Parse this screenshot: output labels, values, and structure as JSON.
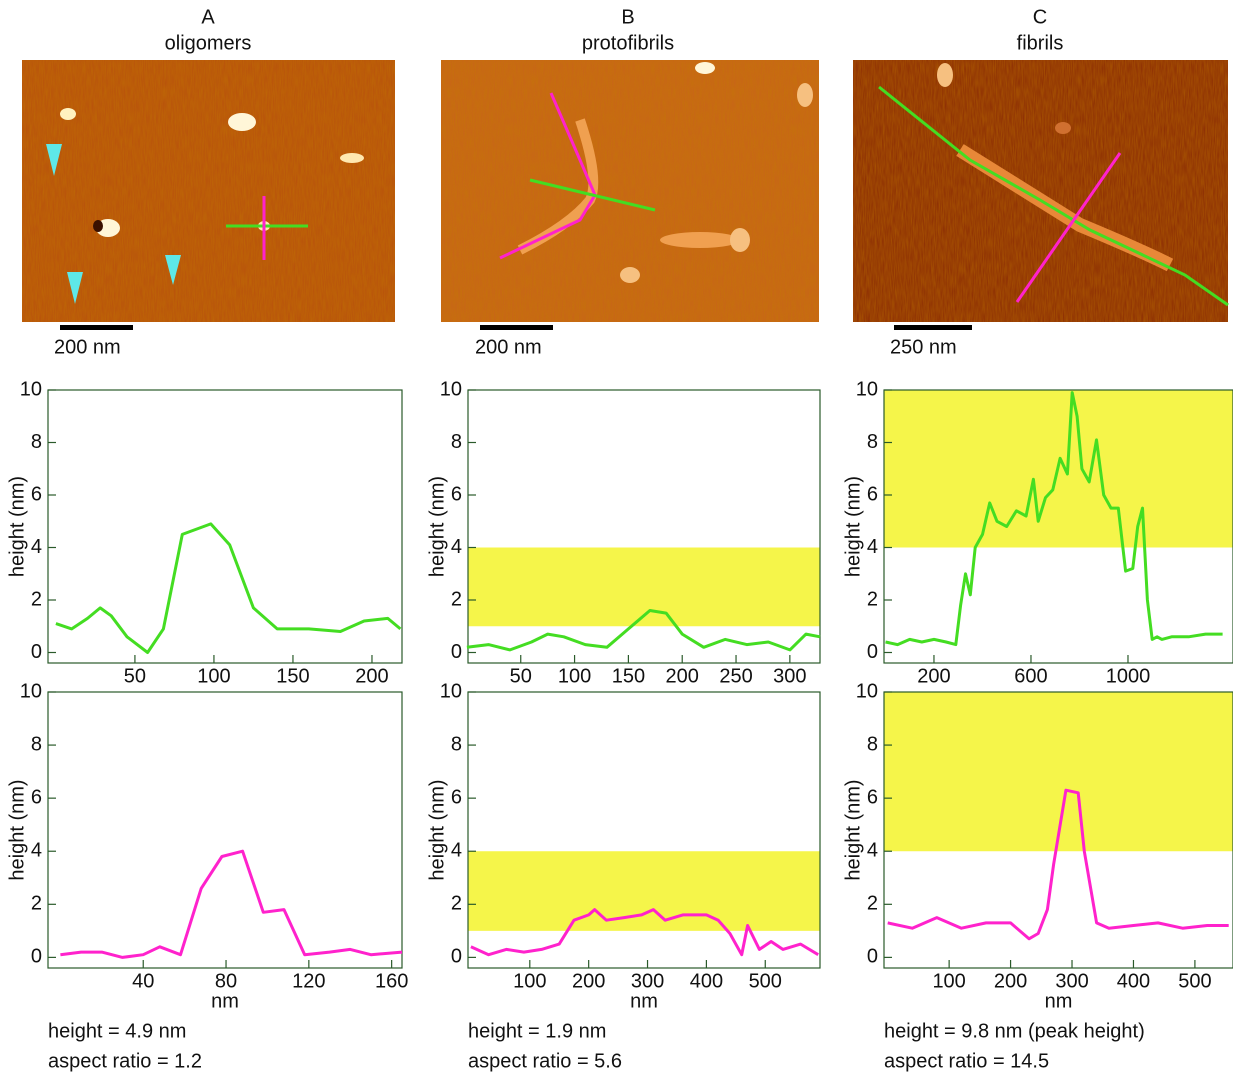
{
  "panels": [
    {
      "label": "A",
      "title": "oligomers",
      "scale_bar": "200 nm",
      "summary": [
        "height = 4.9 nm",
        "aspect ratio = 1.2"
      ]
    },
    {
      "label": "B",
      "title": "protofibrils",
      "scale_bar": "200 nm",
      "summary": [
        "height = 1.9 nm",
        "aspect ratio = 5.6"
      ]
    },
    {
      "label": "C",
      "title": "fibrils",
      "scale_bar": "250 nm",
      "summary": [
        "height = 9.8 nm (peak height)",
        "aspect ratio = 14.5"
      ]
    }
  ],
  "chart_data": [
    {
      "type": "line",
      "ylabel": "height (nm)",
      "color": "#44dd22",
      "x": [
        0,
        10,
        20,
        28,
        35,
        45,
        58,
        68,
        80,
        98,
        110,
        125,
        140,
        160,
        180,
        195,
        210,
        218
      ],
      "values": [
        1.1,
        0.9,
        1.3,
        1.7,
        1.4,
        0.6,
        0,
        0.9,
        4.5,
        4.9,
        4.1,
        1.7,
        0.9,
        0.9,
        0.8,
        1.2,
        1.3,
        0.9
      ],
      "xlim": [
        -5,
        219
      ],
      "xticks": [
        50,
        100,
        150,
        200
      ],
      "ylim": [
        -0.4,
        10
      ],
      "yticks": [
        0,
        2,
        4,
        6,
        8,
        10
      ]
    },
    {
      "type": "line",
      "ylabel": "height (nm)",
      "xlabel": "nm",
      "color": "#ff22cc",
      "x": [
        0,
        10,
        20,
        30,
        40,
        48,
        58,
        68,
        78,
        88,
        98,
        108,
        118,
        130,
        140,
        150,
        165
      ],
      "values": [
        0.1,
        0.2,
        0.2,
        0,
        0.1,
        0.4,
        0.1,
        2.6,
        3.8,
        4.0,
        1.7,
        1.8,
        0.1,
        0.2,
        0.3,
        0.1,
        0.2
      ],
      "xlim": [
        -6,
        165
      ],
      "xticks": [
        40,
        80,
        120,
        160
      ],
      "ylim": [
        -0.4,
        10
      ],
      "yticks": [
        0,
        2,
        4,
        6,
        8,
        10
      ]
    },
    {
      "type": "line",
      "ylabel": "height (nm)",
      "color": "#44dd22",
      "band": [
        1,
        4
      ],
      "band_color": "#f5f54a",
      "x": [
        0,
        20,
        40,
        60,
        75,
        90,
        110,
        130,
        150,
        170,
        185,
        200,
        220,
        240,
        260,
        280,
        300,
        315,
        328
      ],
      "values": [
        0.2,
        0.3,
        0.1,
        0.4,
        0.7,
        0.6,
        0.3,
        0.2,
        0.9,
        1.6,
        1.5,
        0.7,
        0.2,
        0.5,
        0.3,
        0.4,
        0.1,
        0.7,
        0.6
      ],
      "xlim": [
        1,
        328
      ],
      "xticks": [
        50,
        100,
        150,
        200,
        250,
        300
      ],
      "ylim": [
        -0.4,
        10
      ],
      "yticks": [
        0,
        2,
        4,
        6,
        8,
        10
      ]
    },
    {
      "type": "line",
      "ylabel": "height (nm)",
      "xlabel": "nm",
      "color": "#ff22cc",
      "band": [
        1,
        4
      ],
      "band_color": "#f5f54a",
      "x": [
        0,
        30,
        60,
        90,
        120,
        150,
        175,
        200,
        210,
        230,
        260,
        290,
        310,
        330,
        360,
        400,
        420,
        440,
        460,
        470,
        490,
        510,
        530,
        560,
        590
      ],
      "values": [
        0.4,
        0.1,
        0.3,
        0.2,
        0.3,
        0.5,
        1.4,
        1.6,
        1.8,
        1.4,
        1.5,
        1.6,
        1.8,
        1.4,
        1.6,
        1.6,
        1.4,
        0.9,
        0.1,
        1.2,
        0.3,
        0.6,
        0.3,
        0.5,
        0.1
      ],
      "xlim": [
        -5,
        593
      ],
      "xticks": [
        100,
        200,
        300,
        400,
        500
      ],
      "ylim": [
        -0.4,
        10
      ],
      "yticks": [
        0,
        2,
        4,
        6,
        8,
        10
      ]
    },
    {
      "type": "line",
      "ylabel": "height (nm)",
      "color": "#44dd22",
      "band": [
        4,
        10
      ],
      "band_color": "#f5f54a",
      "x": [
        0,
        50,
        100,
        150,
        200,
        250,
        290,
        310,
        330,
        350,
        370,
        400,
        430,
        460,
        500,
        540,
        580,
        610,
        630,
        660,
        690,
        720,
        750,
        770,
        790,
        810,
        840,
        870,
        900,
        930,
        960,
        990,
        1020,
        1040,
        1060,
        1080,
        1100,
        1120,
        1140,
        1180,
        1250,
        1320,
        1390
      ],
      "values": [
        0.4,
        0.3,
        0.5,
        0.4,
        0.5,
        0.4,
        0.3,
        1.8,
        3.0,
        2.2,
        4.0,
        4.5,
        5.7,
        5.0,
        4.8,
        5.4,
        5.2,
        6.6,
        5.0,
        5.9,
        6.2,
        7.4,
        6.8,
        9.9,
        9.0,
        7.0,
        6.5,
        8.1,
        6.0,
        5.5,
        5.5,
        3.1,
        3.2,
        4.8,
        5.5,
        2.0,
        0.5,
        0.6,
        0.5,
        0.6,
        0.6,
        0.7,
        0.7
      ],
      "xlim": [
        -6,
        1433
      ],
      "xticks": [
        200,
        600,
        1000
      ],
      "ylim": [
        -0.4,
        10
      ],
      "yticks": [
        0,
        2,
        4,
        6,
        8,
        10
      ]
    },
    {
      "type": "line",
      "ylabel": "height (nm)",
      "xlabel": "nm",
      "color": "#ff22cc",
      "band": [
        4,
        10
      ],
      "band_color": "#f5f54a",
      "x": [
        0,
        40,
        80,
        120,
        160,
        200,
        230,
        245,
        260,
        270,
        290,
        310,
        320,
        340,
        360,
        400,
        440,
        480,
        520,
        555
      ],
      "values": [
        1.3,
        1.1,
        1.5,
        1.1,
        1.3,
        1.3,
        0.7,
        0.9,
        1.8,
        3.5,
        6.3,
        6.2,
        4.0,
        1.3,
        1.1,
        1.2,
        1.3,
        1.1,
        1.2,
        1.2
      ],
      "xlim": [
        -6,
        562
      ],
      "xticks": [
        100,
        200,
        300,
        400,
        500
      ],
      "ylim": [
        -0.4,
        10
      ],
      "yticks": [
        0,
        2,
        4,
        6,
        8,
        10
      ]
    }
  ]
}
